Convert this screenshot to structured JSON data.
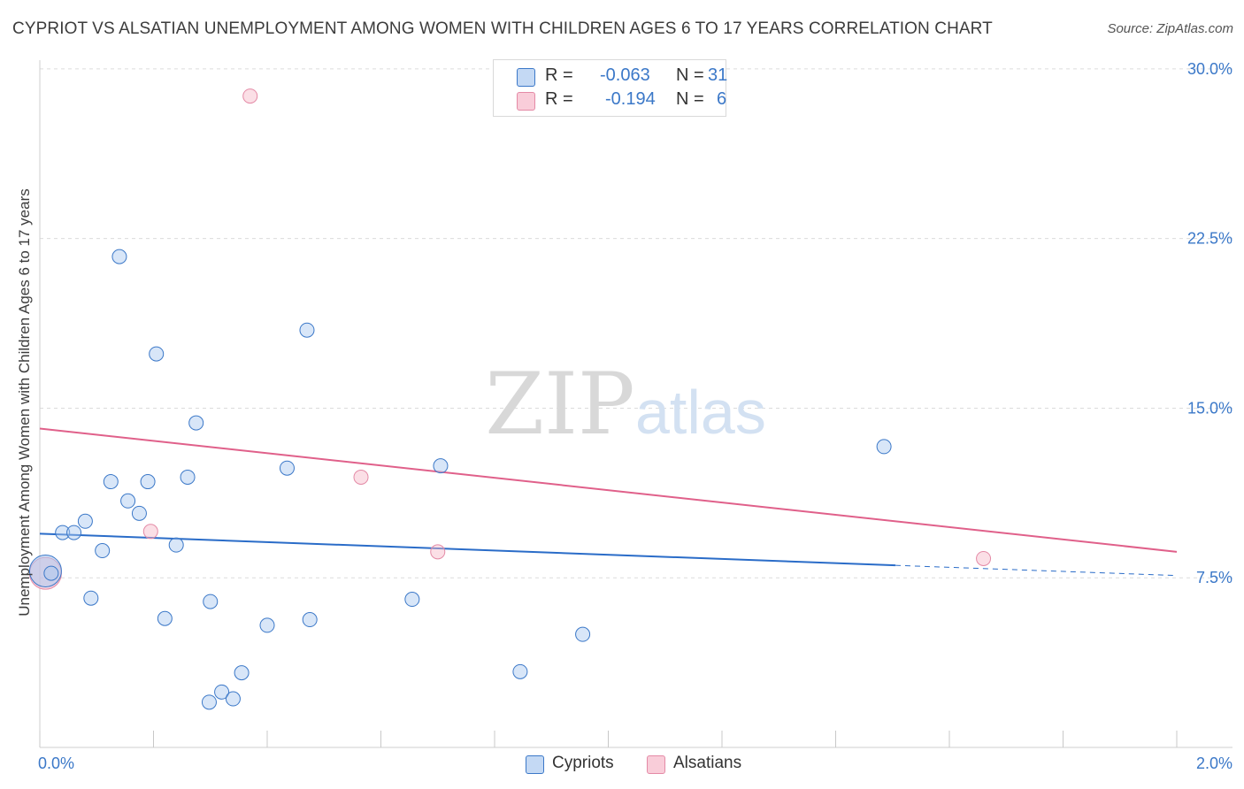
{
  "title": "CYPRIOT VS ALSATIAN UNEMPLOYMENT AMONG WOMEN WITH CHILDREN AGES 6 TO 17 YEARS CORRELATION CHART",
  "source": "Source: ZipAtlas.com",
  "watermark": {
    "zip": "ZIP",
    "atlas": "atlas"
  },
  "legend_top": [
    {
      "label": "R =",
      "r": "-0.063",
      "n_label": "N =",
      "n": "31",
      "color": "#a9c8f0"
    },
    {
      "label": "R =",
      "r": "-0.194",
      "n_label": "N =",
      "n": "6",
      "color": "#f6b7c8"
    }
  ],
  "legend_bottom": [
    {
      "label": "Cypriots",
      "color": "#a9c8f0"
    },
    {
      "label": "Alsatians",
      "color": "#f6b7c8"
    }
  ],
  "chart_data": {
    "type": "scatter",
    "title": "CYPRIOT VS ALSATIAN UNEMPLOYMENT AMONG WOMEN WITH CHILDREN AGES 6 TO 17 YEARS CORRELATION CHART",
    "xlabel": "",
    "ylabel": "Unemployment Among Women with Children Ages 6 to 17 years",
    "xlim": [
      0,
      2.0
    ],
    "ylim": [
      0,
      30.7
    ],
    "x_tick_labels": [
      {
        "value": 0.0,
        "label": "0.0%"
      },
      {
        "value": 2.0,
        "label": "2.0%"
      }
    ],
    "y_tick_labels": [
      {
        "value": 7.5,
        "label": "7.5%"
      },
      {
        "value": 15.0,
        "label": "15.0%"
      },
      {
        "value": 22.5,
        "label": "22.5%"
      },
      {
        "value": 30.0,
        "label": "30.0%"
      }
    ],
    "series": [
      {
        "name": "Cypriots",
        "color": "#a9c8f0",
        "stroke": "#3b78c8",
        "line_color": "#2a6cc8",
        "points": [
          {
            "x": 0.01,
            "y": 7.8,
            "big": true
          },
          {
            "x": 0.02,
            "y": 7.7
          },
          {
            "x": 0.04,
            "y": 9.5
          },
          {
            "x": 0.06,
            "y": 9.5
          },
          {
            "x": 0.08,
            "y": 10.0
          },
          {
            "x": 0.09,
            "y": 6.6
          },
          {
            "x": 0.11,
            "y": 8.7
          },
          {
            "x": 0.125,
            "y": 11.75
          },
          {
            "x": 0.14,
            "y": 21.7
          },
          {
            "x": 0.155,
            "y": 10.9
          },
          {
            "x": 0.175,
            "y": 10.35
          },
          {
            "x": 0.19,
            "y": 11.75
          },
          {
            "x": 0.205,
            "y": 17.4
          },
          {
            "x": 0.22,
            "y": 5.7
          },
          {
            "x": 0.24,
            "y": 8.95
          },
          {
            "x": 0.26,
            "y": 11.95
          },
          {
            "x": 0.275,
            "y": 14.35
          },
          {
            "x": 0.298,
            "y": 2.0
          },
          {
            "x": 0.3,
            "y": 6.45
          },
          {
            "x": 0.32,
            "y": 2.45
          },
          {
            "x": 0.34,
            "y": 2.15
          },
          {
            "x": 0.355,
            "y": 3.3
          },
          {
            "x": 0.4,
            "y": 5.4
          },
          {
            "x": 0.435,
            "y": 12.35
          },
          {
            "x": 0.47,
            "y": 18.45
          },
          {
            "x": 0.475,
            "y": 5.65
          },
          {
            "x": 0.655,
            "y": 6.55
          },
          {
            "x": 0.705,
            "y": 12.45
          },
          {
            "x": 0.845,
            "y": 3.35
          },
          {
            "x": 0.955,
            "y": 5.0
          },
          {
            "x": 1.485,
            "y": 13.3
          }
        ],
        "trend": {
          "x0": 0.0,
          "y0": 9.45,
          "x1": 1.505,
          "y1": 8.05,
          "dash_to_x": 2.0,
          "dash_to_y": 7.6
        }
      },
      {
        "name": "Alsatians",
        "color": "#f6b7c8",
        "stroke": "#e48aa6",
        "line_color": "#e0608a",
        "points": [
          {
            "x": 0.01,
            "y": 7.7,
            "big": true
          },
          {
            "x": 0.195,
            "y": 9.55
          },
          {
            "x": 0.37,
            "y": 28.8
          },
          {
            "x": 0.565,
            "y": 11.95
          },
          {
            "x": 0.7,
            "y": 8.65
          },
          {
            "x": 1.66,
            "y": 8.35
          }
        ],
        "trend": {
          "x0": 0.0,
          "y0": 14.1,
          "x1": 2.0,
          "y1": 8.65
        }
      }
    ]
  }
}
